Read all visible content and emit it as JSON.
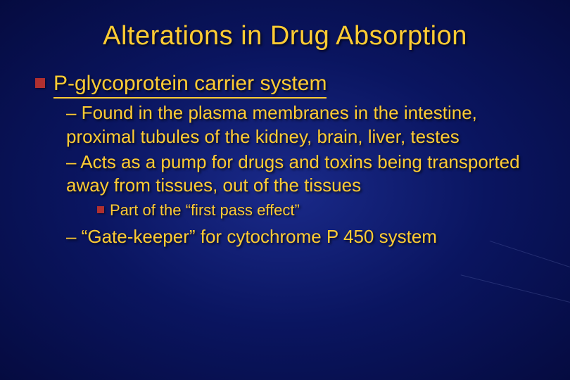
{
  "colors": {
    "text": "#ffcc33",
    "bullet": "#b03030",
    "bg_center": "#1a2a8a",
    "bg_mid": "#0a1560",
    "bg_edge": "#050b40"
  },
  "fonts": {
    "family": "Comic Sans MS",
    "title_size_pt": 38,
    "level1_size_pt": 30,
    "level2_size_pt": 26,
    "level3_size_pt": 22
  },
  "slide": {
    "title": "Alterations in Drug Absorption",
    "level1": "P-glycoprotein carrier system",
    "sub": [
      "– Found in the plasma membranes in the intestine, proximal tubules of the kidney, brain, liver, testes",
      "– Acts as a pump for drugs and toxins being transported away from tissues, out of the tissues"
    ],
    "sub_sub": "Part of the “first pass effect”",
    "sub_after": "– “Gate-keeper” for cytochrome P 450 system"
  }
}
